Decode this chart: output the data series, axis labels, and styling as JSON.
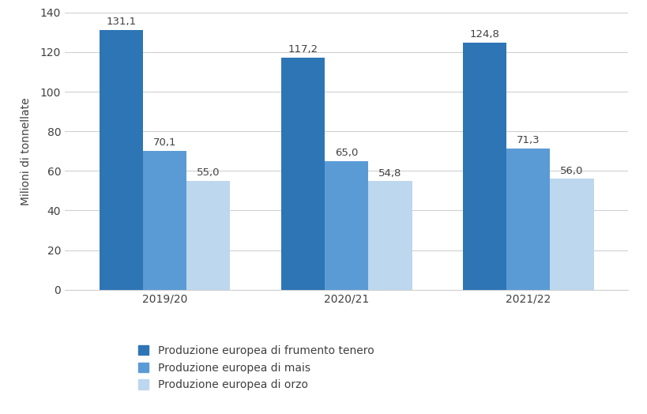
{
  "categories": [
    "2019/20",
    "2020/21",
    "2021/22"
  ],
  "series": {
    "frumento": [
      131.1,
      117.2,
      124.8
    ],
    "mais": [
      70.1,
      65.0,
      71.3
    ],
    "orzo": [
      55.0,
      54.8,
      56.0
    ]
  },
  "colors": {
    "frumento": "#2E75B6",
    "mais": "#5B9BD5",
    "orzo": "#BDD7EE"
  },
  "legend_labels": [
    "Produzione europea di frumento tenero",
    "Produzione europea di mais",
    "Produzione europea di orzo"
  ],
  "ylabel": "Milioni di tonnellate",
  "ylim": [
    0,
    140
  ],
  "yticks": [
    0,
    20,
    40,
    60,
    80,
    100,
    120,
    140
  ],
  "bar_width": 0.24,
  "label_fontsize": 9.5,
  "tick_fontsize": 10,
  "ylabel_fontsize": 10,
  "legend_fontsize": 10,
  "background_color": "#ffffff"
}
